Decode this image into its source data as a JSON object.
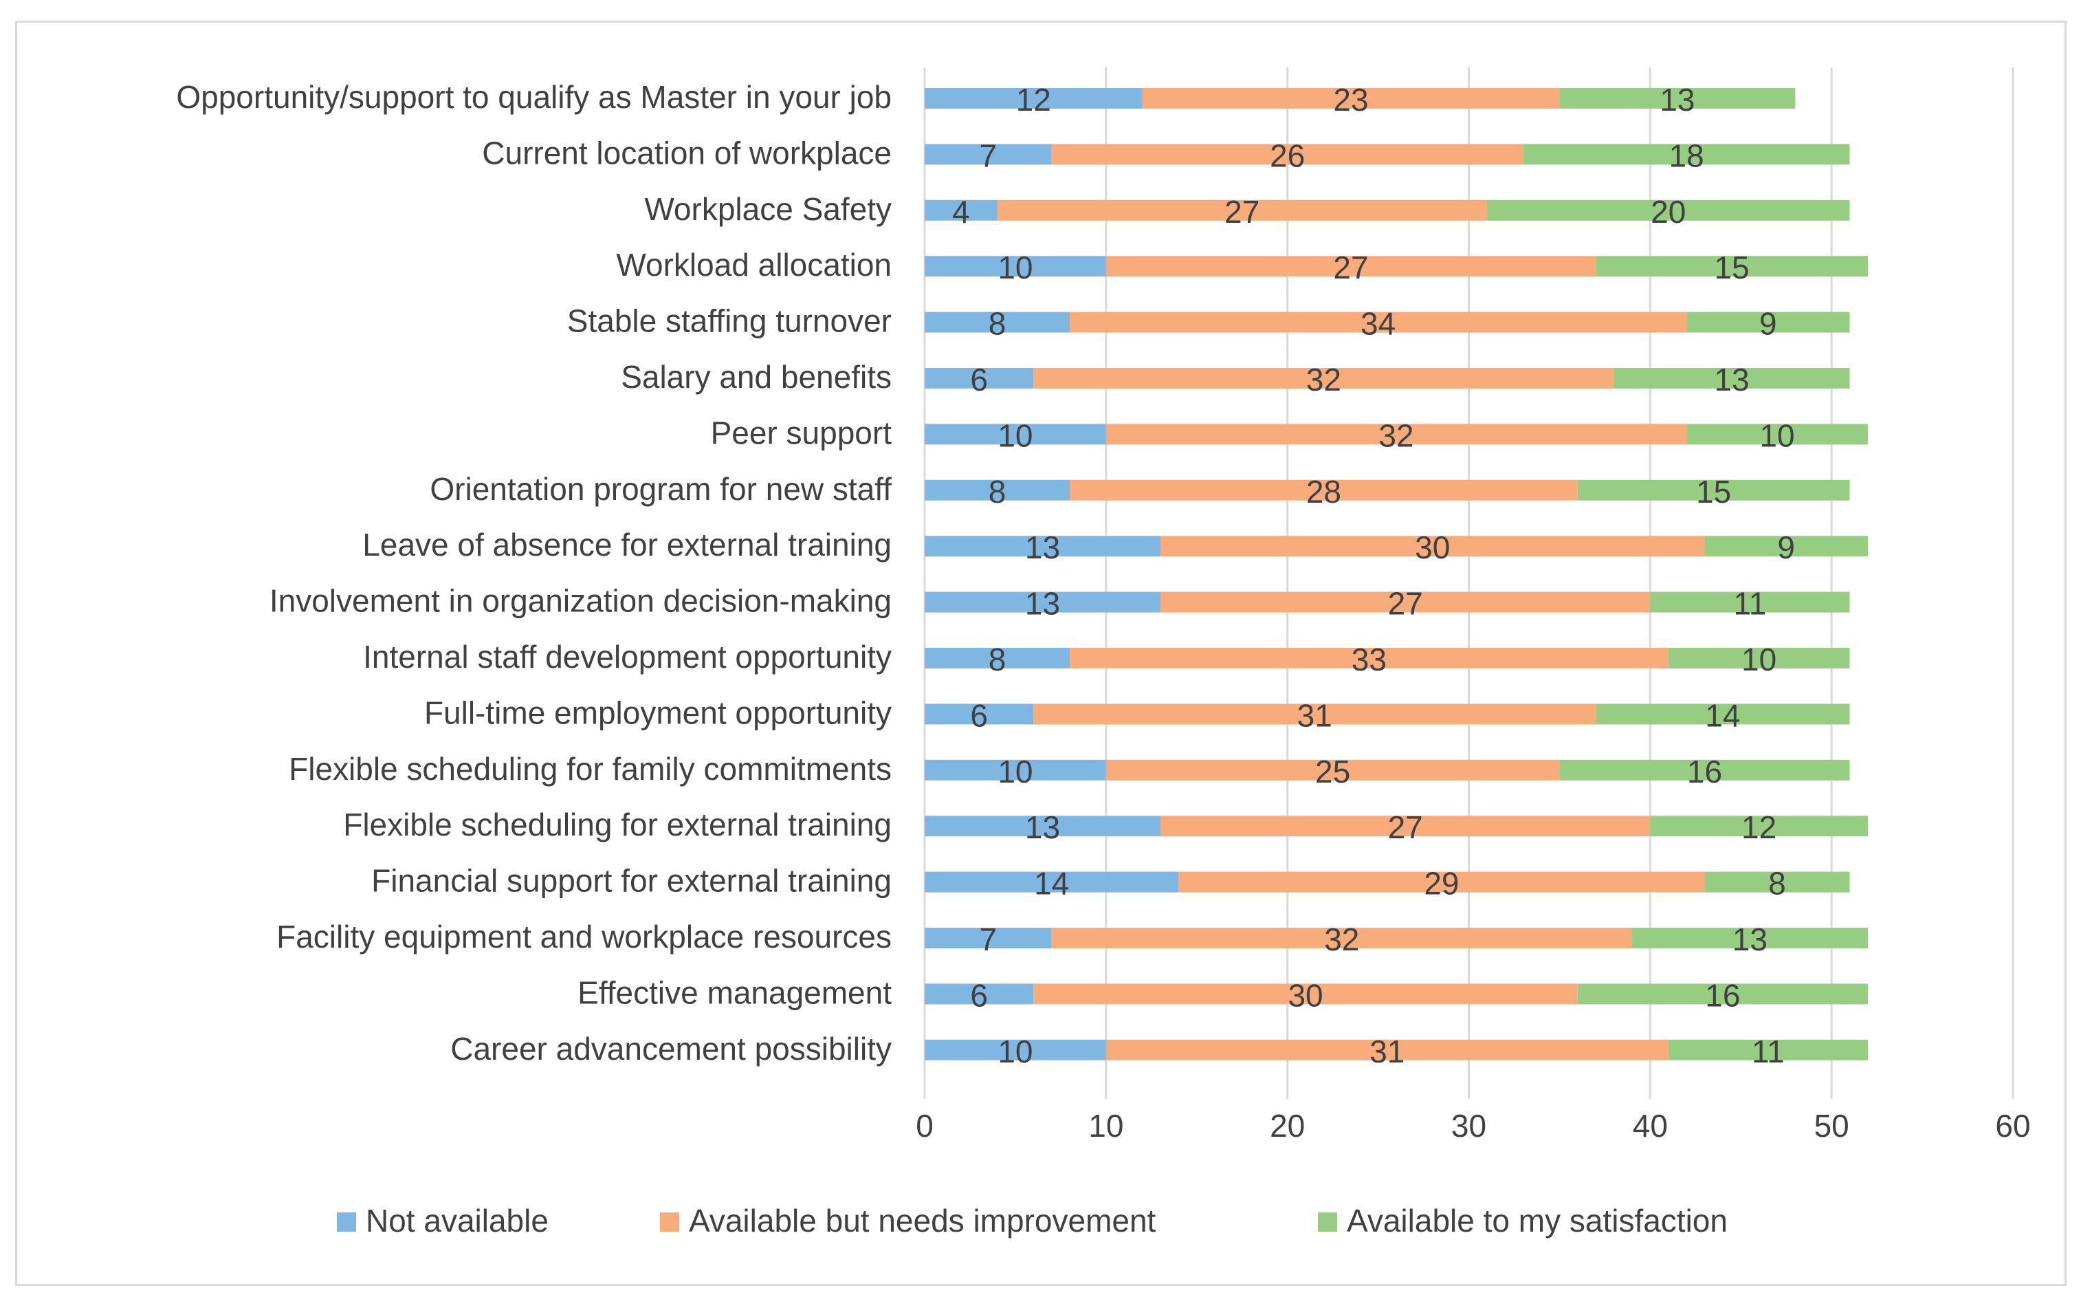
{
  "chart_data": {
    "type": "bar",
    "orientation": "horizontal",
    "stacked": true,
    "title": "",
    "xlabel": "",
    "ylabel": "",
    "xlim": [
      0,
      60
    ],
    "x_ticks": [
      0,
      10,
      20,
      30,
      40,
      50,
      60
    ],
    "grid": "vertical",
    "legend_position": "bottom",
    "categories": [
      "Opportunity/support to qualify as Master in your job",
      "Current location of workplace",
      "Workplace Safety",
      "Workload allocation",
      "Stable staffing turnover",
      "Salary and benefits",
      "Peer support",
      "Orientation program for new staff",
      "Leave of absence for external training",
      "Involvement in organization decision-making",
      "Internal staff development opportunity",
      "Full-time employment opportunity",
      "Flexible scheduling for family commitments",
      "Flexible scheduling for external training",
      "Financial support for external training",
      "Facility equipment and workplace resources",
      "Effective management",
      "Career advancement possibility"
    ],
    "series": [
      {
        "name": "Not available",
        "color": "#7fb7e2",
        "values": [
          12,
          7,
          4,
          10,
          8,
          6,
          10,
          8,
          13,
          13,
          8,
          6,
          10,
          13,
          14,
          7,
          6,
          10
        ]
      },
      {
        "name": "Available but needs improvement",
        "color": "#f8ac7c",
        "values": [
          23,
          26,
          27,
          27,
          34,
          32,
          32,
          28,
          30,
          27,
          33,
          31,
          25,
          27,
          29,
          32,
          30,
          31
        ]
      },
      {
        "name": "Available to my satisfaction",
        "color": "#96cd82",
        "values": [
          13,
          18,
          20,
          15,
          9,
          13,
          10,
          15,
          9,
          11,
          10,
          14,
          16,
          12,
          8,
          13,
          16,
          11
        ]
      }
    ]
  }
}
